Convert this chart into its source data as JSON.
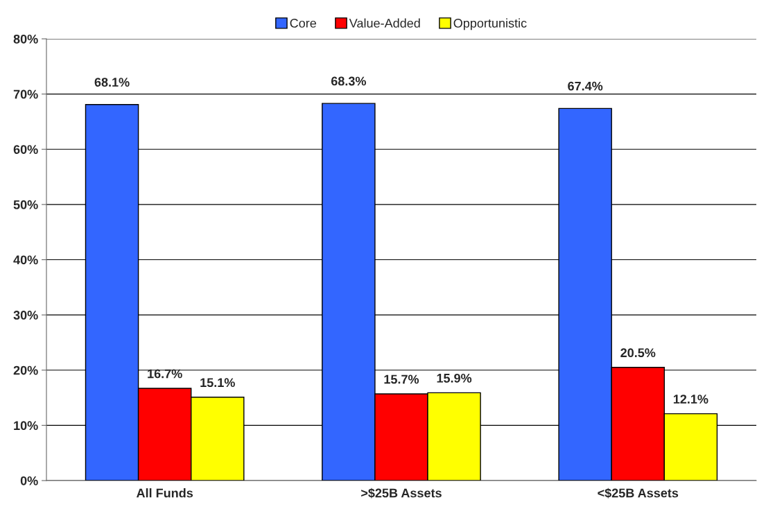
{
  "chart_data": {
    "type": "bar",
    "categories": [
      "All Funds",
      ">$25B Assets",
      "<$25B Assets"
    ],
    "series": [
      {
        "name": "Core",
        "color": "#3366ff",
        "values": [
          68.1,
          68.3,
          67.4
        ],
        "value_labels": [
          "68.1%",
          "68.3%",
          "67.4%"
        ]
      },
      {
        "name": "Value-Added",
        "color": "#ff0000",
        "values": [
          16.7,
          15.7,
          20.5
        ],
        "value_labels": [
          "16.7%",
          "15.7%",
          "20.5%"
        ]
      },
      {
        "name": "Opportunistic",
        "color": "#ffff00",
        "values": [
          15.1,
          15.9,
          12.1
        ],
        "value_labels": [
          "15.1%",
          "15.9%",
          "12.1%"
        ]
      }
    ],
    "ylim": [
      0,
      80
    ],
    "yticks": [
      {
        "value": 0,
        "label": "0%"
      },
      {
        "value": 10,
        "label": "10%"
      },
      {
        "value": 20,
        "label": "20%"
      },
      {
        "value": 30,
        "label": "30%"
      },
      {
        "value": 40,
        "label": "40%"
      },
      {
        "value": 50,
        "label": "50%"
      },
      {
        "value": 60,
        "label": "60%"
      },
      {
        "value": 70,
        "label": "70%"
      },
      {
        "value": 80,
        "label": "80%"
      }
    ],
    "grid": "y",
    "legend": "top"
  }
}
